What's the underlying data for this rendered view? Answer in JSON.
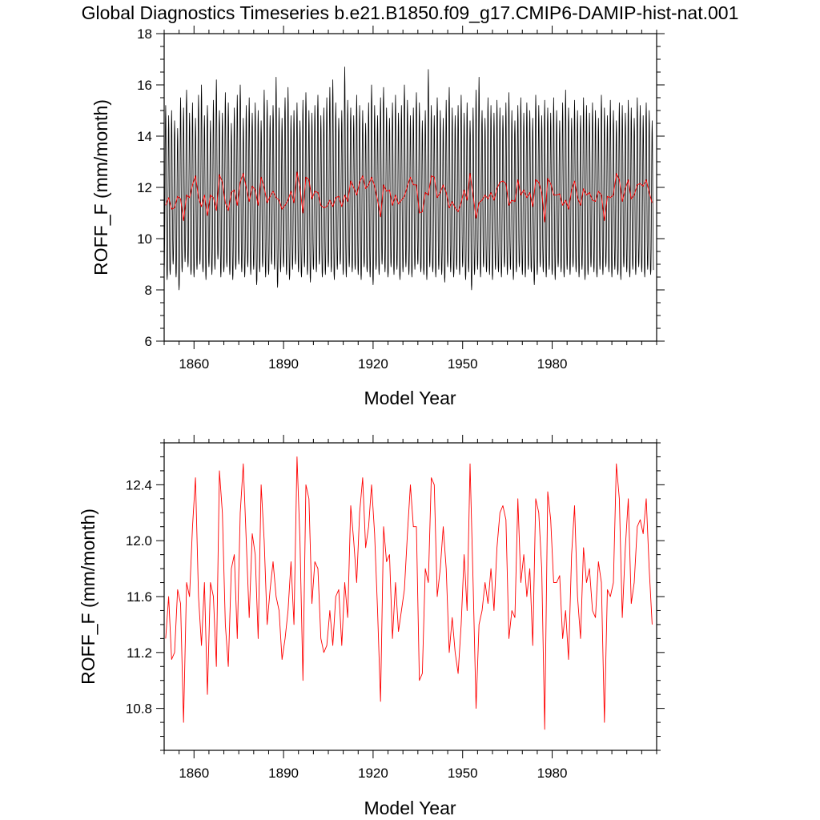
{
  "page": {
    "title": "Global Diagnostics Timeseries b.e21.B1850.f09_g17.CMIP6-DAMIP-hist-nat.001"
  },
  "chart_data": [
    {
      "type": "line",
      "title": "",
      "xlabel": "Model Year",
      "ylabel": "ROFF_F (mm/month)",
      "xlim": [
        1850,
        2015
      ],
      "ylim": [
        6,
        18
      ],
      "x_ticks": [
        1860,
        1890,
        1920,
        1950,
        1980
      ],
      "y_ticks": [
        6,
        8,
        10,
        12,
        14,
        16,
        18
      ],
      "y_minor_step": 0.5,
      "grid": false,
      "series": [
        {
          "name": "",
          "color": "#000000",
          "resolution": "monthly",
          "x_start": 1850,
          "x_step": 0.0833333,
          "summer_peaks": [
            15.2,
            14.8,
            15.0,
            14.6,
            14.3,
            15.5,
            15.1,
            15.8,
            14.9,
            15.3,
            14.7,
            15.6,
            16.0,
            14.8,
            15.2,
            14.6,
            15.4,
            16.2,
            15.0,
            14.9,
            15.7,
            15.3,
            14.5,
            15.1,
            15.6,
            16.0,
            14.7,
            15.2,
            15.5,
            14.9,
            15.3,
            15.0,
            14.6,
            15.8,
            15.4,
            14.8,
            15.2,
            16.3,
            15.1,
            14.7,
            15.5,
            15.9,
            14.8,
            15.0,
            15.3,
            14.6,
            15.4,
            15.7,
            15.0,
            14.9,
            15.2,
            15.6,
            14.8,
            15.1,
            15.5,
            15.9,
            16.2,
            15.3,
            14.7,
            15.0,
            16.7,
            15.4,
            15.1,
            14.8,
            15.6,
            15.2,
            15.0,
            14.5,
            15.3,
            16.0,
            15.2,
            14.8,
            15.5,
            15.9,
            15.1,
            14.7,
            15.3,
            15.6,
            14.9,
            15.2,
            16.0,
            15.4,
            14.8,
            15.1,
            15.7,
            15.3,
            14.6,
            15.0,
            16.6,
            15.2,
            14.8,
            15.5,
            15.0,
            14.7,
            15.4,
            15.9,
            15.1,
            14.8,
            15.2,
            15.6,
            14.9,
            15.3,
            14.6,
            15.1,
            15.8,
            16.3,
            15.0,
            14.7,
            15.5,
            15.2,
            14.9,
            15.4,
            15.1,
            14.8,
            15.3,
            15.7,
            15.0,
            14.6,
            15.2,
            15.5,
            14.9,
            15.3,
            15.0,
            14.7,
            15.6,
            15.2,
            14.8,
            15.4,
            15.1,
            14.9,
            15.5,
            15.0,
            14.6,
            15.3,
            15.8,
            15.1,
            14.7,
            15.4,
            15.0,
            14.8,
            15.5,
            15.2,
            14.9,
            15.3,
            15.0,
            14.7,
            15.6,
            15.1,
            14.8,
            15.4,
            15.0,
            14.6,
            15.3,
            15.2,
            14.9,
            15.4,
            15.1,
            14.7,
            15.5,
            15.2,
            14.8,
            15.3,
            15.0,
            14.6,
            15.4,
            15.2
          ],
          "winter_troughs": [
            8.8,
            8.4,
            8.6,
            9.0,
            8.5,
            8.0,
            8.7,
            9.1,
            8.9,
            8.6,
            8.5,
            8.8,
            9.0,
            8.7,
            8.4,
            8.9,
            8.6,
            8.8,
            9.2,
            8.5,
            8.7,
            8.9,
            8.6,
            8.4,
            8.8,
            9.0,
            8.7,
            8.5,
            8.9,
            8.6,
            8.8,
            8.2,
            8.7,
            8.9,
            8.5,
            8.6,
            9.0,
            8.8,
            8.1,
            8.7,
            8.9,
            8.6,
            8.4,
            8.8,
            9.0,
            8.7,
            8.5,
            8.9,
            8.6,
            8.3,
            8.8,
            8.7,
            9.0,
            8.5,
            8.6,
            8.9,
            8.7,
            8.4,
            8.8,
            9.0,
            8.6,
            8.5,
            8.9,
            8.7,
            8.8,
            8.6,
            8.4,
            8.9,
            8.7,
            8.5,
            8.2,
            8.8,
            8.6,
            9.0,
            8.7,
            8.5,
            8.9,
            8.6,
            8.8,
            8.4,
            8.7,
            8.9,
            8.6,
            8.5,
            8.8,
            9.0,
            8.7,
            8.6,
            8.4,
            8.9,
            8.7,
            8.5,
            8.8,
            8.6,
            8.3,
            8.9,
            8.7,
            8.5,
            8.8,
            8.6,
            8.9,
            8.4,
            8.7,
            8.0,
            8.6,
            8.8,
            8.5,
            8.9,
            8.7,
            8.6,
            8.4,
            8.8,
            8.7,
            8.5,
            8.9,
            8.6,
            8.8,
            8.4,
            8.7,
            8.9,
            8.6,
            8.5,
            8.8,
            8.7,
            8.2,
            8.6,
            8.9,
            8.7,
            8.5,
            8.8,
            8.6,
            8.4,
            8.9,
            8.7,
            8.5,
            8.8,
            8.6,
            8.9,
            8.7,
            8.5,
            8.8,
            8.4,
            8.6,
            8.9,
            8.7,
            8.5,
            8.8,
            8.6,
            8.9,
            8.7,
            8.5,
            8.8,
            8.6,
            8.4,
            8.9,
            8.7,
            8.5,
            8.8,
            8.6,
            8.9,
            8.7,
            8.5,
            8.8,
            8.6
          ]
        },
        {
          "name": "",
          "color": "#ff0000",
          "resolution": "annual",
          "ref": "annual_mean"
        }
      ]
    },
    {
      "type": "line",
      "title": "",
      "xlabel": "Model Year",
      "ylabel": "ROFF_F (mm/month)",
      "xlim": [
        1850,
        2015
      ],
      "ylim": [
        10.5,
        12.7
      ],
      "x_ticks": [
        1860,
        1890,
        1920,
        1950,
        1980
      ],
      "y_ticks": [
        10.8,
        11.2,
        11.6,
        12.0,
        12.4
      ],
      "y_tick_labels": [
        "10.8",
        "11.2",
        "11.6",
        "12.0",
        "12.4"
      ],
      "y_minor_step": 0.1,
      "grid": false,
      "series": [
        {
          "name": "",
          "color": "#ff0000",
          "ref": "annual_mean"
        }
      ]
    }
  ],
  "annual_mean": {
    "x_start": 1850,
    "x_step": 1,
    "values": [
      11.3,
      11.6,
      11.15,
      11.2,
      11.65,
      11.55,
      10.7,
      11.7,
      11.6,
      12.1,
      12.45,
      11.6,
      11.25,
      11.7,
      10.9,
      11.7,
      11.6,
      11.1,
      12.5,
      12.2,
      11.4,
      11.1,
      11.8,
      11.9,
      11.3,
      12.2,
      12.55,
      12.0,
      11.45,
      12.05,
      11.9,
      11.3,
      12.4,
      12.0,
      11.4,
      11.65,
      11.85,
      11.6,
      11.5,
      11.15,
      11.3,
      11.5,
      11.85,
      11.4,
      12.6,
      12.0,
      11.0,
      12.4,
      12.3,
      11.55,
      11.85,
      11.8,
      11.3,
      11.2,
      11.25,
      11.5,
      11.25,
      11.6,
      11.65,
      11.25,
      11.7,
      11.45,
      12.25,
      12.0,
      11.7,
      12.2,
      12.45,
      11.95,
      12.1,
      12.4,
      12.05,
      11.5,
      10.85,
      12.1,
      11.85,
      11.9,
      11.3,
      11.7,
      11.35,
      11.5,
      11.65,
      12.05,
      12.4,
      12.1,
      12.1,
      11.0,
      11.05,
      11.8,
      11.7,
      12.45,
      12.4,
      11.6,
      11.8,
      12.1,
      11.8,
      11.2,
      11.45,
      11.2,
      11.05,
      11.4,
      11.9,
      11.5,
      12.55,
      11.7,
      10.8,
      11.4,
      11.5,
      11.7,
      11.55,
      11.8,
      11.5,
      11.95,
      12.2,
      12.25,
      12.15,
      11.3,
      11.5,
      11.45,
      12.3,
      11.7,
      11.9,
      11.6,
      11.8,
      11.25,
      12.3,
      12.2,
      11.8,
      10.65,
      12.35,
      12.15,
      11.7,
      11.7,
      11.75,
      11.3,
      11.5,
      11.15,
      11.9,
      12.25,
      11.6,
      11.3,
      11.95,
      11.7,
      11.8,
      11.5,
      11.45,
      11.85,
      11.7,
      10.7,
      11.65,
      11.6,
      11.7,
      12.55,
      12.3,
      11.45,
      11.95,
      12.3,
      11.55,
      11.7,
      12.1,
      12.15,
      12.05,
      12.3,
      11.8,
      11.4
    ]
  }
}
